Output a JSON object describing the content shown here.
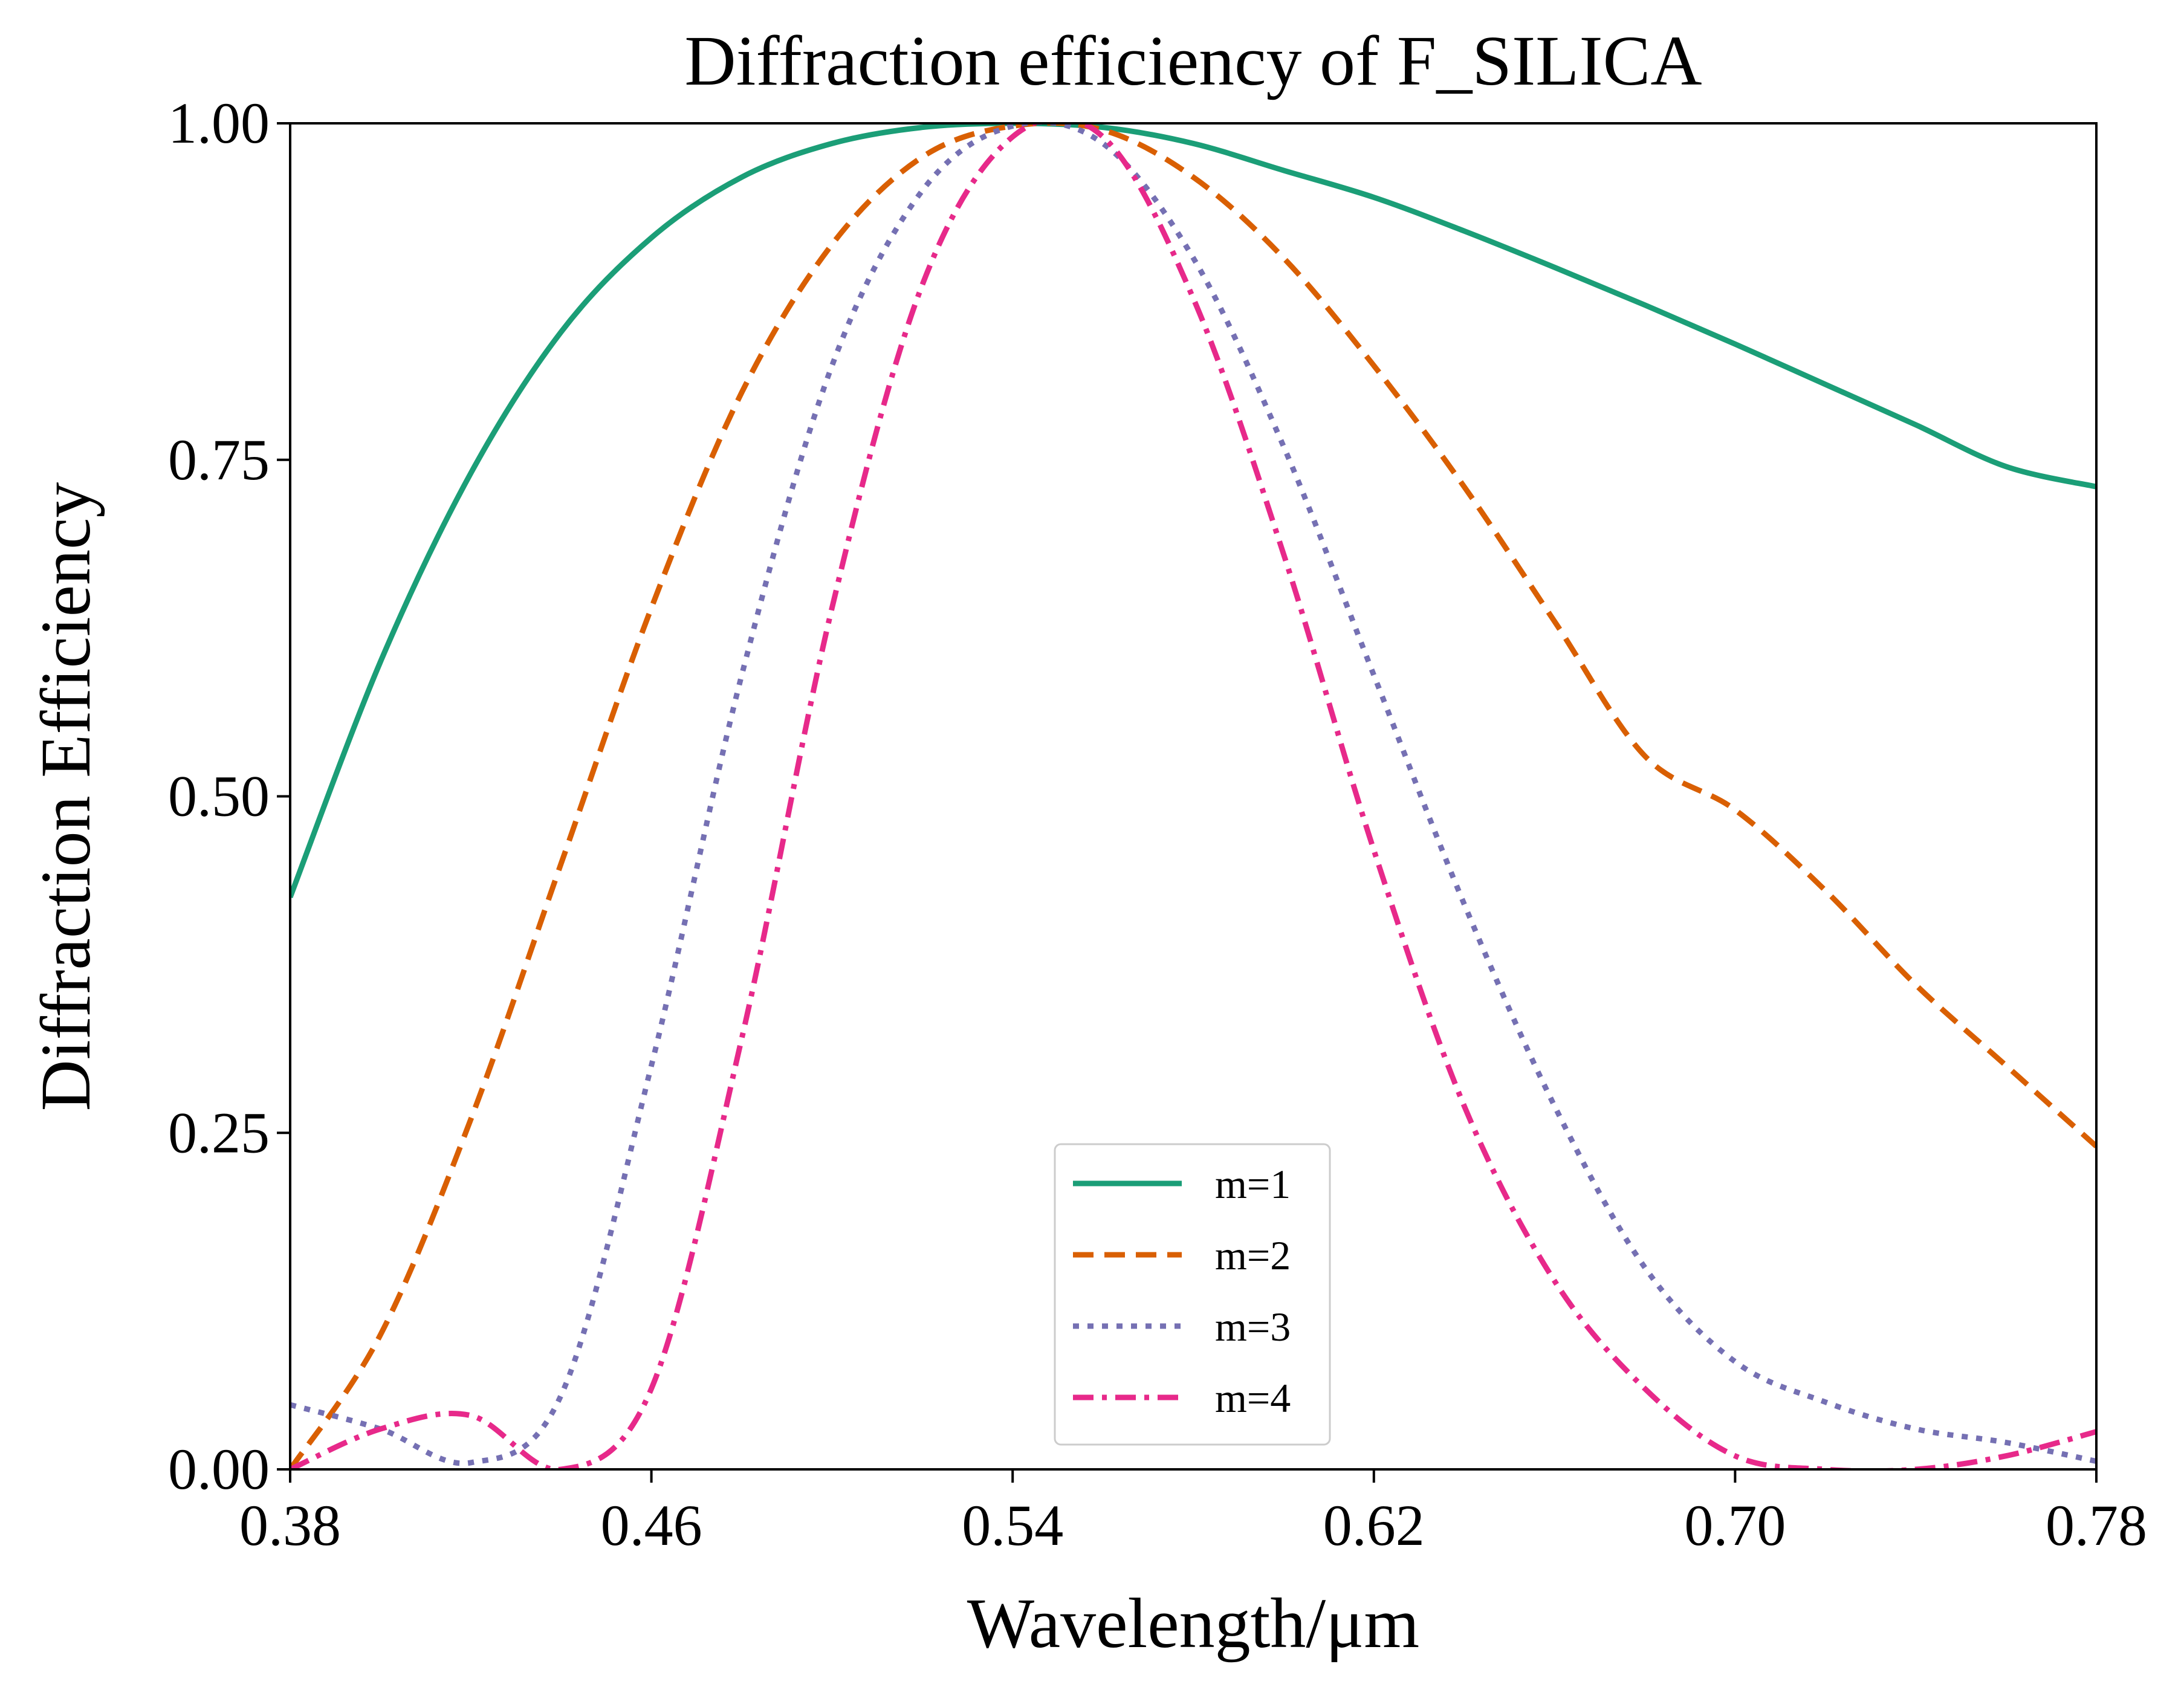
{
  "chart_data": {
    "type": "line",
    "title": "Diffraction efficiency of F_SILICA",
    "xlabel": "Wavelength/μm",
    "ylabel": "Diffraction Efficiency",
    "xlim": [
      0.38,
      0.78
    ],
    "ylim": [
      0.0,
      1.0
    ],
    "xticks": [
      "0.38",
      "0.46",
      "0.54",
      "0.62",
      "0.70",
      "0.78"
    ],
    "yticks": [
      "0.00",
      "0.25",
      "0.50",
      "0.75",
      "1.00"
    ],
    "grid": false,
    "legend_position": "lower-center",
    "x": [
      0.38,
      0.4,
      0.42,
      0.44,
      0.46,
      0.48,
      0.5,
      0.52,
      0.54,
      0.56,
      0.58,
      0.6,
      0.62,
      0.64,
      0.66,
      0.68,
      0.7,
      0.72,
      0.74,
      0.76,
      0.78
    ],
    "series": [
      {
        "name": "m=1",
        "color": "#1b9e77",
        "dash": "solid",
        "values": [
          0.425,
          0.6,
          0.74,
          0.845,
          0.915,
          0.96,
          0.985,
          0.997,
          1.0,
          0.997,
          0.985,
          0.965,
          0.945,
          0.92,
          0.893,
          0.865,
          0.836,
          0.806,
          0.776,
          0.745,
          0.73
        ]
      },
      {
        "name": "m=2",
        "color": "#d95f02",
        "dash": "dashed",
        "values": [
          0.0,
          0.1,
          0.26,
          0.45,
          0.64,
          0.8,
          0.91,
          0.975,
          0.998,
          0.995,
          0.96,
          0.9,
          0.82,
          0.73,
          0.63,
          0.53,
          0.49,
          0.43,
          0.36,
          0.3,
          0.24
        ]
      },
      {
        "name": "m=3",
        "color": "#7570b3",
        "dash": "dotted",
        "values": [
          0.048,
          0.03,
          0.005,
          0.055,
          0.3,
          0.59,
          0.82,
          0.95,
          0.998,
          0.985,
          0.9,
          0.76,
          0.59,
          0.42,
          0.27,
          0.15,
          0.08,
          0.05,
          0.03,
          0.02,
          0.006
        ]
      },
      {
        "name": "m=4",
        "color": "#e7298a",
        "dash": "dashdot",
        "values": [
          0.0,
          0.03,
          0.04,
          0.0,
          0.06,
          0.32,
          0.64,
          0.88,
          0.99,
          0.99,
          0.87,
          0.68,
          0.46,
          0.27,
          0.14,
          0.06,
          0.01,
          0.0,
          0.0,
          0.01,
          0.028
        ]
      }
    ]
  }
}
